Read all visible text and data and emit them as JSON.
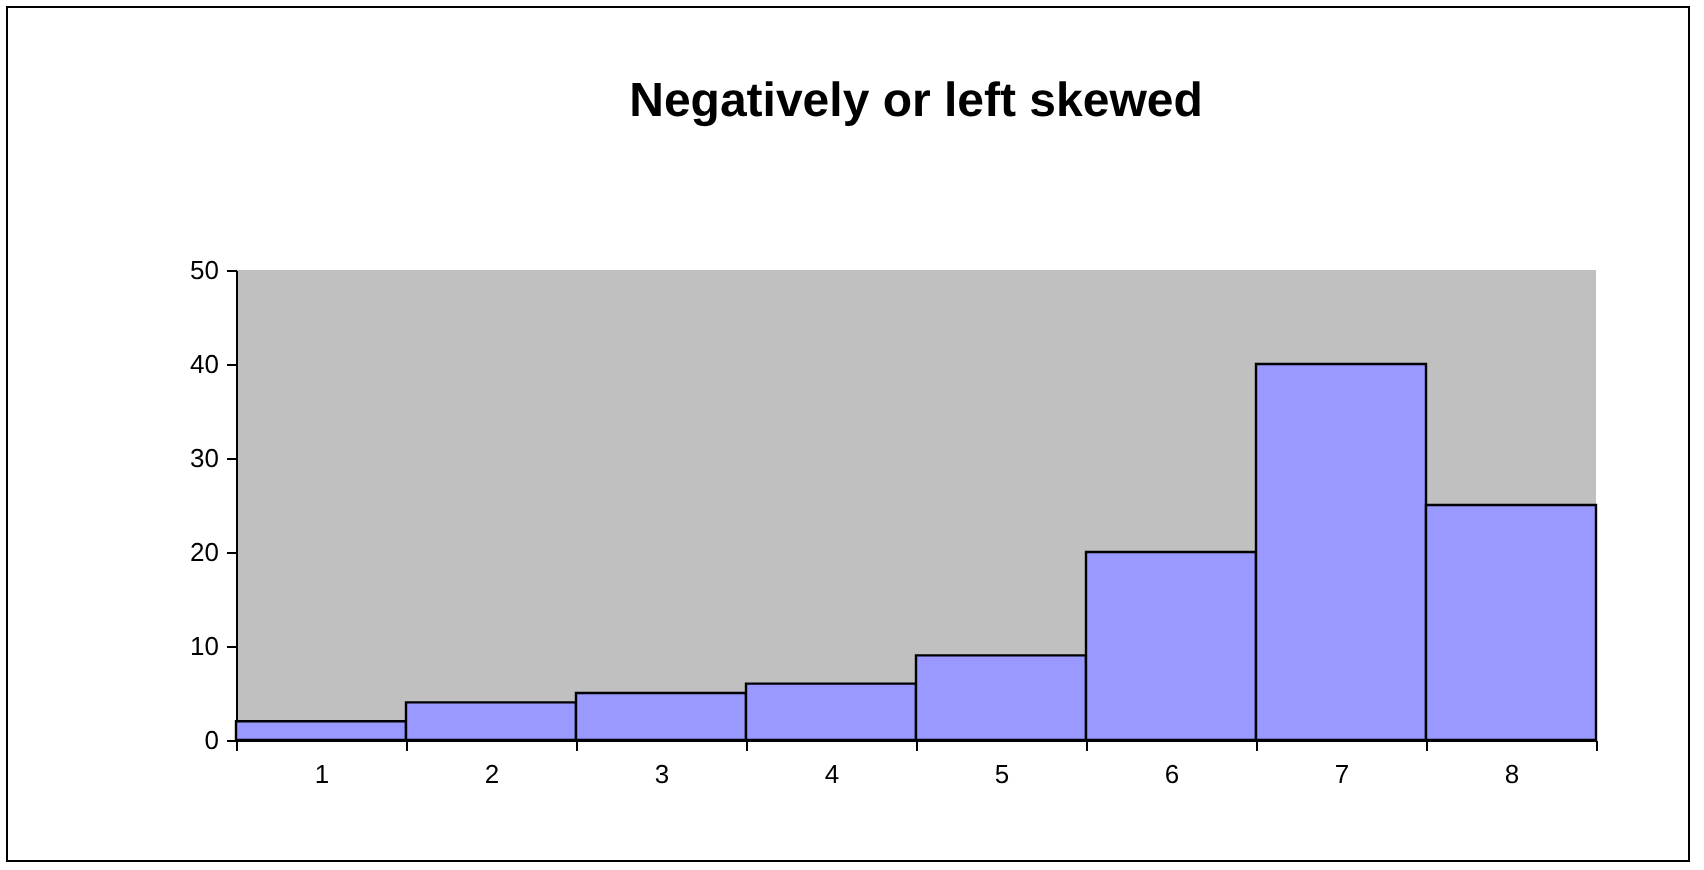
{
  "chart_data": {
    "type": "bar",
    "title": "Negatively or left skewed",
    "categories": [
      "1",
      "2",
      "3",
      "4",
      "5",
      "6",
      "7",
      "8"
    ],
    "values": [
      2,
      4,
      5,
      6,
      9,
      20,
      40,
      25
    ],
    "color": "#9999ff",
    "ylim": [
      0,
      50
    ],
    "yticks": [
      0,
      10,
      20,
      30,
      40,
      50
    ]
  }
}
